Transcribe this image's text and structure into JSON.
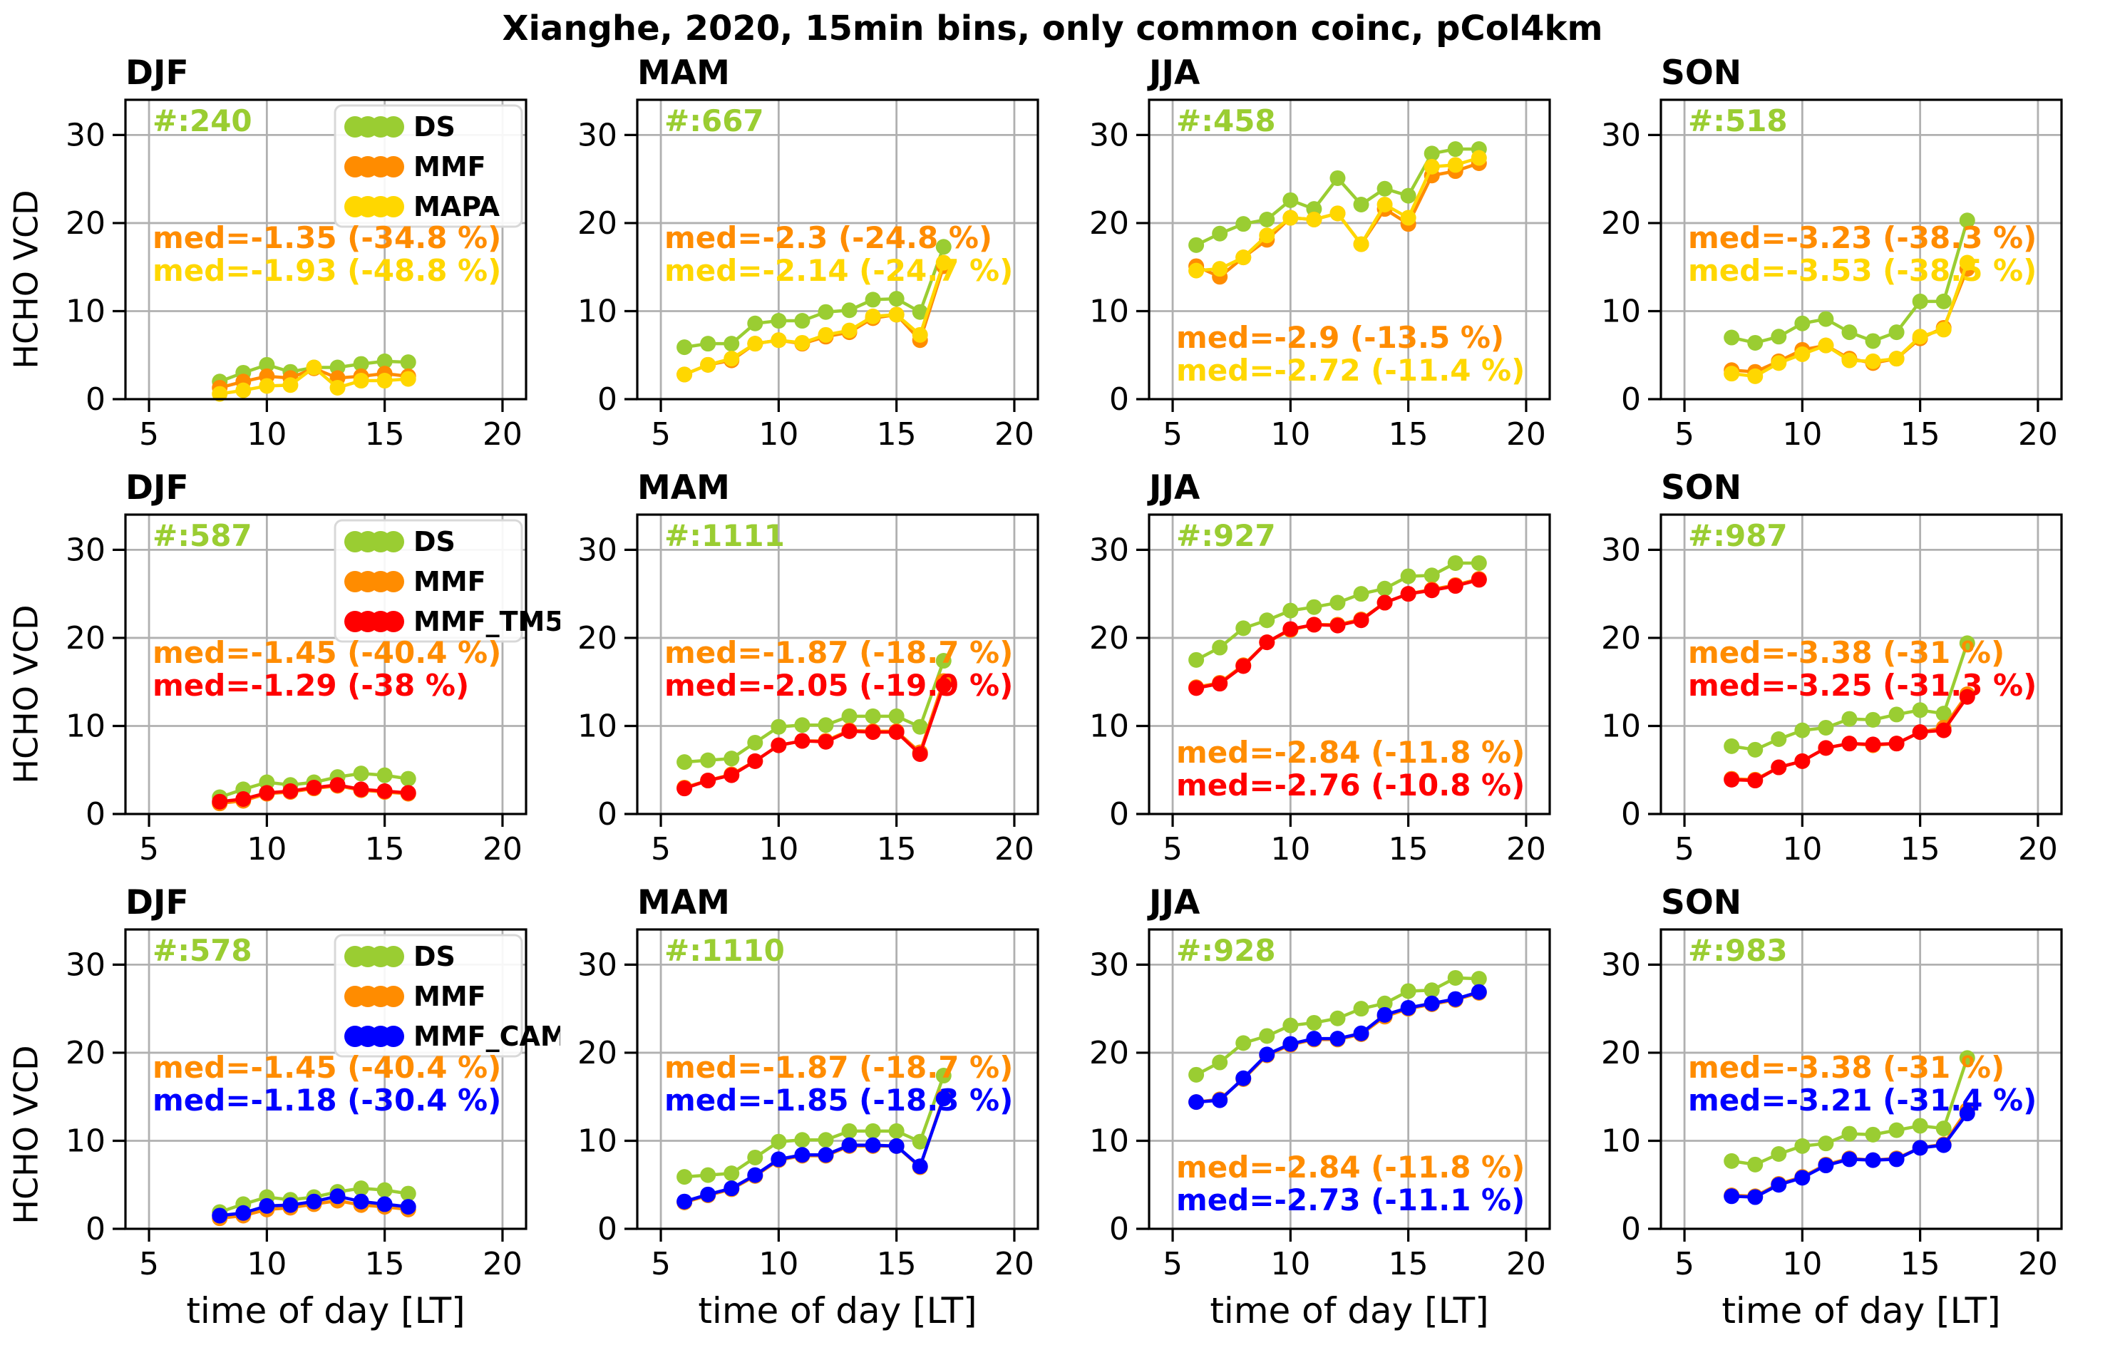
{
  "figure_title": "Xianghe, 2020, 15min bins, only common coinc, pCol4km",
  "axis": {
    "xlabel": "time of day [LT]",
    "ylabel": "HCHO VCD",
    "xlim": [
      4,
      21
    ],
    "ylim": [
      0,
      34
    ],
    "xticks": [
      5,
      10,
      15,
      20
    ],
    "yticks": [
      0,
      10,
      20,
      30
    ],
    "grid": true
  },
  "colors": {
    "DS": "#9ACD32",
    "MMF": "#FF8C00",
    "MAPA": "#FFD700",
    "MMF_TM5": "#FF0000",
    "MMF_CAMS": "#0000FF",
    "grid": "#b0b0b0",
    "spine": "#000000",
    "legend_border": "#d8d8d8"
  },
  "chart_data": [
    {
      "type": "line",
      "season": "DJF",
      "count": "#:240",
      "legend": true,
      "annotation_pos": "upper",
      "annotations": [
        {
          "label": "med=-1.35 (-34.8 %)",
          "series": "MMF"
        },
        {
          "label": "med=-1.93 (-48.8 %)",
          "series": "MAPA"
        }
      ],
      "x": [
        8,
        9,
        10,
        11,
        12,
        13,
        14,
        15,
        16
      ],
      "series": [
        {
          "name": "DS",
          "values": [
            2.0,
            3.0,
            3.9,
            3.1,
            3.6,
            3.6,
            4.0,
            4.3,
            4.2
          ]
        },
        {
          "name": "MMF",
          "values": [
            1.3,
            2.0,
            2.6,
            2.4,
            3.5,
            2.4,
            2.6,
            2.9,
            2.6
          ]
        },
        {
          "name": "MAPA",
          "values": [
            0.6,
            1.0,
            1.5,
            1.6,
            3.6,
            1.3,
            2.1,
            2.1,
            2.3
          ]
        }
      ]
    },
    {
      "type": "line",
      "season": "MAM",
      "count": "#:667",
      "legend": false,
      "annotation_pos": "upper",
      "annotations": [
        {
          "label": "med=-2.3 (-24.8 %)",
          "series": "MMF"
        },
        {
          "label": "med=-2.14 (-24.7 %)",
          "series": "MAPA"
        }
      ],
      "x": [
        6,
        7,
        8,
        9,
        10,
        11,
        12,
        13,
        14,
        15,
        16,
        17
      ],
      "series": [
        {
          "name": "DS",
          "values": [
            5.9,
            6.3,
            6.3,
            8.6,
            8.9,
            8.9,
            9.9,
            10.1,
            11.3,
            11.4,
            9.9,
            17.3
          ]
        },
        {
          "name": "MMF",
          "values": [
            2.8,
            3.9,
            4.4,
            6.3,
            6.7,
            6.3,
            7.1,
            7.6,
            9.2,
            9.6,
            6.7,
            15.1
          ]
        },
        {
          "name": "MAPA",
          "values": [
            2.8,
            3.9,
            4.6,
            6.3,
            6.7,
            6.4,
            7.3,
            7.8,
            9.4,
            9.6,
            7.3,
            15.5
          ]
        }
      ]
    },
    {
      "type": "line",
      "season": "JJA",
      "count": "#:458",
      "legend": false,
      "annotation_pos": "lower",
      "annotations": [
        {
          "label": "med=-2.9 (-13.5 %)",
          "series": "MMF"
        },
        {
          "label": "med=-2.72 (-11.4 %)",
          "series": "MAPA"
        }
      ],
      "x": [
        6,
        7,
        8,
        9,
        10,
        11,
        12,
        13,
        14,
        15,
        16,
        17,
        18
      ],
      "series": [
        {
          "name": "DS",
          "values": [
            17.5,
            18.8,
            19.9,
            20.4,
            22.6,
            21.6,
            25.1,
            22.1,
            23.9,
            23.1,
            27.9,
            28.4,
            28.4
          ]
        },
        {
          "name": "MMF",
          "values": [
            15.1,
            13.9,
            16.1,
            18.1,
            20.6,
            20.4,
            21.1,
            17.6,
            21.6,
            19.9,
            25.4,
            25.9,
            26.8
          ]
        },
        {
          "name": "MAPA",
          "values": [
            14.6,
            14.8,
            16.1,
            18.6,
            20.6,
            20.4,
            21.1,
            17.6,
            22.1,
            20.6,
            26.4,
            26.6,
            27.4
          ]
        }
      ]
    },
    {
      "type": "line",
      "season": "SON",
      "count": "#:518",
      "legend": false,
      "annotation_pos": "upper",
      "annotations": [
        {
          "label": "med=-3.23 (-38.3 %)",
          "series": "MMF"
        },
        {
          "label": "med=-3.53 (-38.5 %)",
          "series": "MAPA"
        }
      ],
      "x": [
        7,
        8,
        9,
        10,
        11,
        12,
        13,
        14,
        15,
        16,
        17
      ],
      "series": [
        {
          "name": "DS",
          "values": [
            7.0,
            6.4,
            7.1,
            8.6,
            9.1,
            7.6,
            6.6,
            7.6,
            11.1,
            11.1,
            20.3
          ]
        },
        {
          "name": "MMF",
          "values": [
            3.3,
            3.1,
            4.3,
            5.6,
            6.1,
            4.6,
            4.1,
            4.6,
            6.9,
            8.1,
            14.8
          ]
        },
        {
          "name": "MAPA",
          "values": [
            2.9,
            2.6,
            4.1,
            5.1,
            6.1,
            4.4,
            4.3,
            4.6,
            7.1,
            7.9,
            15.5
          ]
        }
      ]
    },
    {
      "type": "line",
      "season": "DJF",
      "count": "#:587",
      "legend": true,
      "annotation_pos": "upper",
      "annotations": [
        {
          "label": "med=-1.45 (-40.4 %)",
          "series": "MMF"
        },
        {
          "label": "med=-1.29 (-38 %)",
          "series": "MMF_TM5"
        }
      ],
      "x": [
        8,
        9,
        10,
        11,
        12,
        13,
        14,
        15,
        16
      ],
      "series": [
        {
          "name": "DS",
          "values": [
            1.9,
            2.8,
            3.6,
            3.3,
            3.6,
            4.2,
            4.6,
            4.4,
            4.0
          ]
        },
        {
          "name": "MMF",
          "values": [
            1.2,
            1.5,
            2.3,
            2.5,
            2.9,
            3.2,
            2.7,
            2.5,
            2.3
          ]
        },
        {
          "name": "MMF_TM5",
          "values": [
            1.4,
            1.7,
            2.4,
            2.6,
            3.0,
            3.3,
            2.8,
            2.6,
            2.4
          ]
        }
      ]
    },
    {
      "type": "line",
      "season": "MAM",
      "count": "#:1111",
      "legend": false,
      "annotation_pos": "upper",
      "annotations": [
        {
          "label": "med=-1.87 (-18.7 %)",
          "series": "MMF"
        },
        {
          "label": "med=-2.05 (-19.9 %)",
          "series": "MMF_TM5"
        }
      ],
      "x": [
        6,
        7,
        8,
        9,
        10,
        11,
        12,
        13,
        14,
        15,
        16,
        17
      ],
      "series": [
        {
          "name": "DS",
          "values": [
            5.9,
            6.1,
            6.3,
            8.1,
            9.9,
            10.1,
            10.1,
            11.1,
            11.1,
            11.1,
            9.9,
            17.4
          ]
        },
        {
          "name": "MMF",
          "values": [
            3.0,
            3.8,
            4.5,
            6.0,
            7.8,
            8.3,
            8.3,
            9.5,
            9.4,
            9.4,
            7.0,
            15.1
          ]
        },
        {
          "name": "MMF_TM5",
          "values": [
            2.9,
            3.8,
            4.4,
            6.0,
            7.8,
            8.3,
            8.2,
            9.4,
            9.3,
            9.3,
            6.8,
            14.6
          ]
        }
      ]
    },
    {
      "type": "line",
      "season": "JJA",
      "count": "#:927",
      "legend": false,
      "annotation_pos": "lower",
      "annotations": [
        {
          "label": "med=-2.84 (-11.8 %)",
          "series": "MMF"
        },
        {
          "label": "med=-2.76 (-10.8 %)",
          "series": "MMF_TM5"
        }
      ],
      "x": [
        6,
        7,
        8,
        9,
        10,
        11,
        12,
        13,
        14,
        15,
        16,
        17,
        18
      ],
      "series": [
        {
          "name": "DS",
          "values": [
            17.5,
            18.9,
            21.1,
            22.0,
            23.1,
            23.5,
            24.0,
            25.0,
            25.6,
            27.0,
            27.1,
            28.5,
            28.5
          ]
        },
        {
          "name": "MMF",
          "values": [
            14.4,
            14.9,
            16.9,
            19.5,
            20.9,
            21.5,
            21.5,
            22.1,
            24.0,
            25.0,
            25.5,
            26.0,
            26.7
          ]
        },
        {
          "name": "MMF_TM5",
          "values": [
            14.3,
            14.8,
            16.8,
            19.5,
            21.0,
            21.5,
            21.4,
            22.0,
            24.0,
            25.0,
            25.4,
            25.9,
            26.6
          ]
        }
      ]
    },
    {
      "type": "line",
      "season": "SON",
      "count": "#:987",
      "legend": false,
      "annotation_pos": "upper",
      "annotations": [
        {
          "label": "med=-3.38 (-31 %)",
          "series": "MMF"
        },
        {
          "label": "med=-3.25 (-31.3 %)",
          "series": "MMF_TM5"
        }
      ],
      "x": [
        7,
        8,
        9,
        10,
        11,
        12,
        13,
        14,
        15,
        16,
        17
      ],
      "series": [
        {
          "name": "DS",
          "values": [
            7.7,
            7.3,
            8.5,
            9.5,
            9.8,
            10.8,
            10.7,
            11.3,
            11.8,
            11.4,
            19.4
          ]
        },
        {
          "name": "MMF",
          "values": [
            4.0,
            3.9,
            5.3,
            6.0,
            7.5,
            8.0,
            7.8,
            8.0,
            9.3,
            9.8,
            13.6
          ]
        },
        {
          "name": "MMF_TM5",
          "values": [
            3.9,
            3.8,
            5.3,
            6.0,
            7.5,
            8.0,
            7.9,
            8.0,
            9.3,
            9.5,
            13.3
          ]
        }
      ]
    },
    {
      "type": "line",
      "season": "DJF",
      "count": "#:578",
      "legend": true,
      "annotation_pos": "upper",
      "annotations": [
        {
          "label": "med=-1.45 (-40.4 %)",
          "series": "MMF"
        },
        {
          "label": "med=-1.18 (-30.4 %)",
          "series": "MMF_CAMS"
        }
      ],
      "x": [
        8,
        9,
        10,
        11,
        12,
        13,
        14,
        15,
        16
      ],
      "series": [
        {
          "name": "DS",
          "values": [
            1.9,
            2.8,
            3.6,
            3.3,
            3.6,
            4.2,
            4.6,
            4.4,
            4.0
          ]
        },
        {
          "name": "MMF",
          "values": [
            1.2,
            1.5,
            2.2,
            2.4,
            2.8,
            3.2,
            2.7,
            2.5,
            2.2
          ]
        },
        {
          "name": "MMF_CAMS",
          "values": [
            1.5,
            1.8,
            2.6,
            2.7,
            3.1,
            3.7,
            3.1,
            2.8,
            2.5
          ]
        }
      ]
    },
    {
      "type": "line",
      "season": "MAM",
      "count": "#:1110",
      "legend": false,
      "annotation_pos": "upper",
      "annotations": [
        {
          "label": "med=-1.87 (-18.7 %)",
          "series": "MMF"
        },
        {
          "label": "med=-1.85 (-18.3 %)",
          "series": "MMF_CAMS"
        }
      ],
      "x": [
        6,
        7,
        8,
        9,
        10,
        11,
        12,
        13,
        14,
        15,
        16,
        17
      ],
      "series": [
        {
          "name": "DS",
          "values": [
            5.9,
            6.1,
            6.3,
            8.1,
            9.9,
            10.1,
            10.1,
            11.1,
            11.1,
            11.1,
            9.9,
            17.4
          ]
        },
        {
          "name": "MMF",
          "values": [
            3.0,
            3.8,
            4.5,
            6.0,
            7.8,
            8.3,
            8.3,
            9.4,
            9.4,
            9.4,
            7.0,
            15.0
          ]
        },
        {
          "name": "MMF_CAMS",
          "values": [
            3.1,
            3.9,
            4.6,
            6.1,
            7.9,
            8.4,
            8.4,
            9.5,
            9.5,
            9.4,
            7.1,
            14.8
          ]
        }
      ]
    },
    {
      "type": "line",
      "season": "JJA",
      "count": "#:928",
      "legend": false,
      "annotation_pos": "lower",
      "annotations": [
        {
          "label": "med=-2.84 (-11.8 %)",
          "series": "MMF"
        },
        {
          "label": "med=-2.73 (-11.1 %)",
          "series": "MMF_CAMS"
        }
      ],
      "x": [
        6,
        7,
        8,
        9,
        10,
        11,
        12,
        13,
        14,
        15,
        16,
        17,
        18
      ],
      "series": [
        {
          "name": "DS",
          "values": [
            17.5,
            18.9,
            21.1,
            21.9,
            23.1,
            23.4,
            23.9,
            25.0,
            25.6,
            27.0,
            27.1,
            28.5,
            28.4
          ]
        },
        {
          "name": "MMF",
          "values": [
            14.4,
            14.7,
            17.0,
            19.7,
            20.9,
            21.5,
            21.5,
            22.1,
            24.1,
            25.0,
            25.5,
            26.0,
            26.8
          ]
        },
        {
          "name": "MMF_CAMS",
          "values": [
            14.4,
            14.6,
            17.1,
            19.8,
            21.0,
            21.6,
            21.6,
            22.2,
            24.3,
            25.1,
            25.6,
            26.1,
            26.9
          ]
        }
      ]
    },
    {
      "type": "line",
      "season": "SON",
      "count": "#:983",
      "legend": false,
      "annotation_pos": "upper",
      "annotations": [
        {
          "label": "med=-3.38 (-31 %)",
          "series": "MMF"
        },
        {
          "label": "med=-3.21 (-31.4 %)",
          "series": "MMF_CAMS"
        }
      ],
      "x": [
        7,
        8,
        9,
        10,
        11,
        12,
        13,
        14,
        15,
        16,
        17
      ],
      "series": [
        {
          "name": "DS",
          "values": [
            7.7,
            7.3,
            8.5,
            9.4,
            9.7,
            10.8,
            10.7,
            11.2,
            11.7,
            11.4,
            19.4
          ]
        },
        {
          "name": "MMF",
          "values": [
            3.8,
            3.7,
            5.1,
            5.9,
            7.3,
            8.0,
            7.8,
            8.0,
            9.2,
            9.6,
            13.5
          ]
        },
        {
          "name": "MMF_CAMS",
          "values": [
            3.7,
            3.6,
            5.0,
            5.8,
            7.2,
            7.9,
            7.8,
            7.9,
            9.2,
            9.5,
            13.1
          ]
        }
      ]
    }
  ]
}
